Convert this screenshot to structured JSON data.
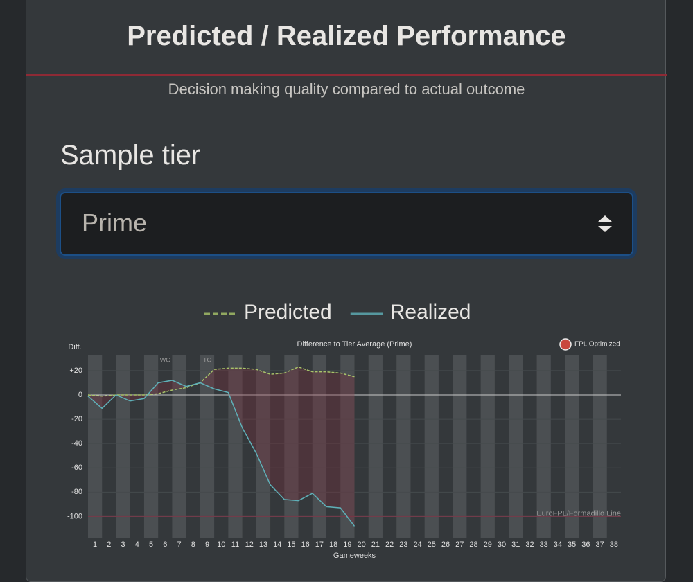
{
  "header": {
    "title": "Predicted / Realized Performance",
    "subtitle": "Decision making quality compared to actual outcome"
  },
  "form": {
    "label": "Sample tier",
    "selected": "Prime"
  },
  "chart_data": {
    "type": "line",
    "title": "Difference to Tier Average (Prime)",
    "watermark": "FPL Optimized",
    "y_label": "Diff.",
    "x_label": "Gameweeks",
    "x": [
      1,
      2,
      3,
      4,
      5,
      6,
      7,
      8,
      9,
      10,
      11,
      12,
      13,
      14,
      15,
      16,
      17,
      18,
      19,
      20,
      21,
      22,
      23,
      24,
      25,
      26,
      27,
      28,
      29,
      30,
      31,
      32,
      33,
      34,
      35,
      36,
      37,
      38
    ],
    "xlim": [
      1,
      39
    ],
    "series": [
      {
        "name": "Predicted",
        "color": "#a9c46a",
        "dashed": true,
        "values": [
          0,
          -1,
          0,
          0,
          0,
          1,
          4,
          6,
          10,
          21,
          22,
          22,
          21,
          17,
          18,
          23,
          19,
          19,
          18,
          15,
          null,
          null,
          null,
          null,
          null,
          null,
          null,
          null,
          null,
          null,
          null,
          null,
          null,
          null,
          null,
          null,
          null,
          null
        ]
      },
      {
        "name": "Realized",
        "color": "#5fb0b8",
        "dashed": false,
        "values": [
          -1,
          -11,
          0,
          -5,
          -3,
          10,
          12,
          7,
          10,
          5,
          2,
          -27,
          -48,
          -74,
          -86,
          -87,
          -81,
          -92,
          -93,
          -108,
          null,
          null,
          null,
          null,
          null,
          null,
          null,
          null,
          null,
          null,
          null,
          null,
          null,
          null,
          null,
          null,
          null,
          null
        ]
      }
    ],
    "ylim": [
      -118,
      32.5
    ],
    "yticks": [
      {
        "value": 20,
        "label": "+20"
      },
      0,
      -20,
      -40,
      -60,
      -80,
      -100
    ],
    "grid": true,
    "annotations": [
      {
        "x": 6,
        "text": "WC"
      },
      {
        "x": 9,
        "text": "TC"
      }
    ],
    "reference_line": {
      "value": -100,
      "label": "EuroFPL/Formadillo Line",
      "color": "#7a3a4a"
    }
  }
}
